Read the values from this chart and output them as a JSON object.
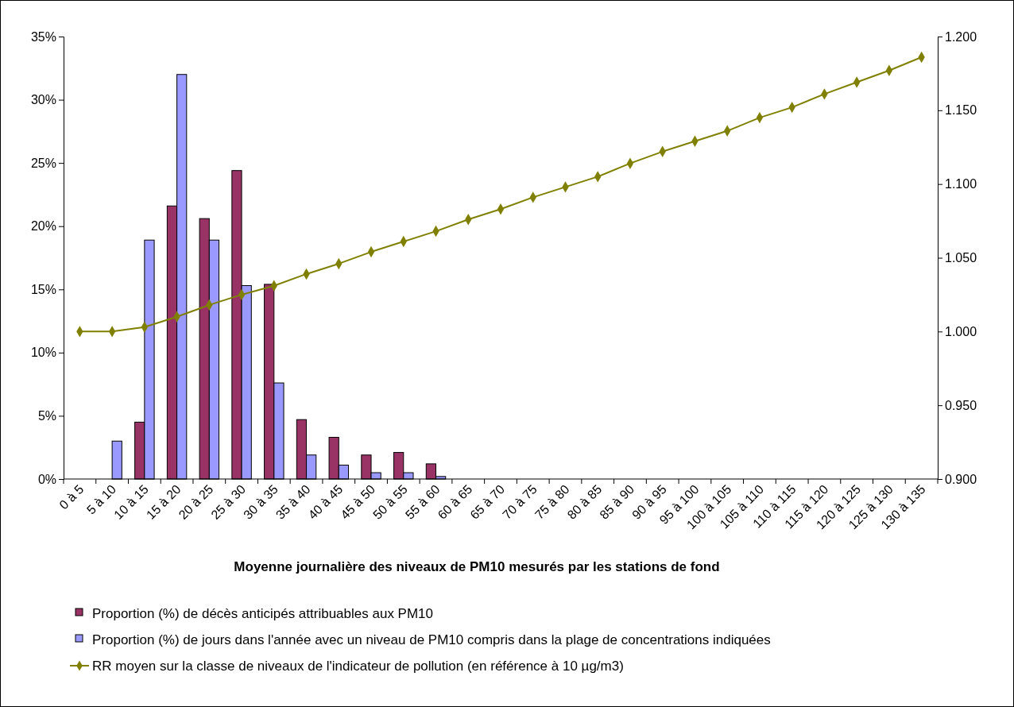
{
  "chart_data": {
    "type": "bar",
    "xlabel": "Moyenne journalière des niveaux de PM10 mesurés par les stations de fond",
    "categories": [
      "0 à 5",
      "5 à 10",
      "10 à 15",
      "15 à 20",
      "20 à 25",
      "25 à 30",
      "30 à 35",
      "35 à 40",
      "40 à 45",
      "45 à 50",
      "50 à 55",
      "55 à 60",
      "60 à 65",
      "65 à 70",
      "70 à 75",
      "75 à 80",
      "80 à 85",
      "85 à 90",
      "90 à 95",
      "95 à 100",
      "100 à 105",
      "105 à 110",
      "110 à 115",
      "115 à 120",
      "120 à 125",
      "125 à 130",
      "130 à 135"
    ],
    "series": [
      {
        "name": "Proportion (%) de décès anticipés attribuables aux PM10",
        "color": "#993366",
        "values": [
          0,
          0,
          4.5,
          21.6,
          20.6,
          24.4,
          15.4,
          4.7,
          3.3,
          1.9,
          2.1,
          1.2,
          0,
          0,
          0,
          0,
          0,
          0,
          0,
          0,
          0,
          0,
          0,
          0,
          0,
          0,
          0
        ]
      },
      {
        "name": "Proportion (%) de jours dans l'année avec un niveau de PM10 compris dans la plage de concentrations indiquées",
        "color": "#9999ff",
        "values": [
          0,
          3.0,
          18.9,
          32.0,
          18.9,
          15.3,
          7.6,
          1.9,
          1.1,
          0.5,
          0.5,
          0.2,
          0,
          0,
          0,
          0,
          0,
          0,
          0,
          0,
          0,
          0,
          0,
          0,
          0,
          0,
          0
        ]
      },
      {
        "name": "RR moyen sur la classe de niveaux de l'indicateur de pollution (en référence à 10 µg/m3)",
        "type": "line",
        "axis": "y2",
        "marker": "diamond",
        "color": "#808000",
        "values": [
          1.0,
          1.0,
          1.003,
          1.01,
          1.018,
          1.025,
          1.031,
          1.039,
          1.046,
          1.054,
          1.061,
          1.068,
          1.076,
          1.083,
          1.091,
          1.098,
          1.105,
          1.114,
          1.122,
          1.129,
          1.136,
          1.145,
          1.152,
          1.161,
          1.169,
          1.177,
          1.186
        ]
      }
    ],
    "ylim": [
      0,
      35
    ],
    "yticks": [
      {
        "value": 0,
        "label": "0%"
      },
      {
        "value": 5,
        "label": "5%"
      },
      {
        "value": 10,
        "label": "10%"
      },
      {
        "value": 15,
        "label": "15%"
      },
      {
        "value": 20,
        "label": "20%"
      },
      {
        "value": 25,
        "label": "25%"
      },
      {
        "value": 30,
        "label": "30%"
      },
      {
        "value": 35,
        "label": "35%"
      }
    ],
    "y2lim": [
      0.9,
      1.2
    ],
    "y2ticks": [
      {
        "value": 0.9,
        "label": "0.900"
      },
      {
        "value": 0.95,
        "label": "0.950"
      },
      {
        "value": 1.0,
        "label": "1.000"
      },
      {
        "value": 1.05,
        "label": "1.050"
      },
      {
        "value": 1.1,
        "label": "1.100"
      },
      {
        "value": 1.15,
        "label": "1.150"
      },
      {
        "value": 1.2,
        "label": "1.200"
      }
    ],
    "legend": "bottom"
  }
}
